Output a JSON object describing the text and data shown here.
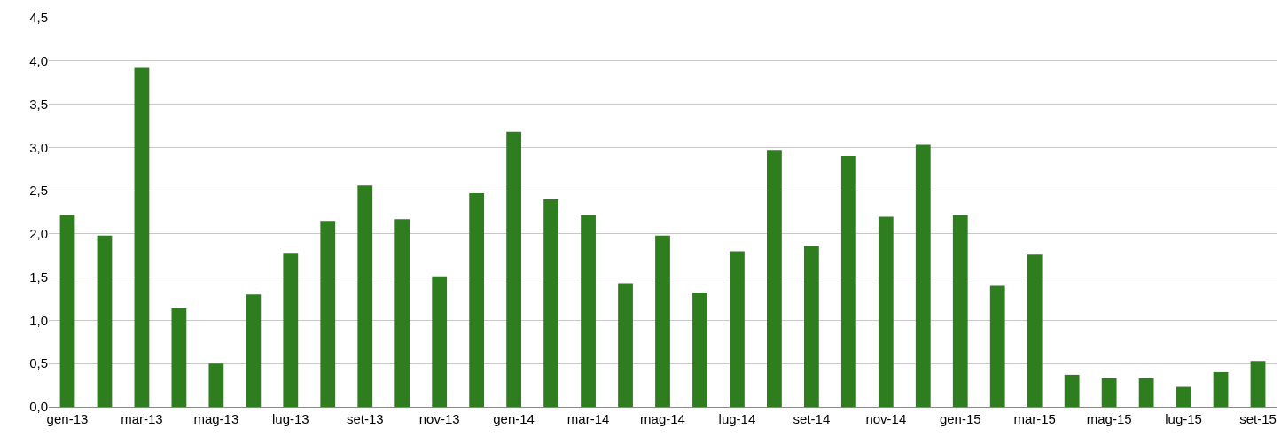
{
  "chart_data": {
    "type": "bar",
    "categories": [
      "gen-13",
      null,
      "mar-13",
      null,
      "mag-13",
      null,
      "lug-13",
      null,
      "set-13",
      null,
      "nov-13",
      null,
      "gen-14",
      null,
      "mar-14",
      null,
      "mag-14",
      null,
      "lug-14",
      null,
      "set-14",
      null,
      "nov-14",
      null,
      "gen-15",
      null,
      "mar-15",
      null,
      "mag-15",
      null,
      "lug-15",
      null,
      "set-15"
    ],
    "values": [
      2.22,
      1.98,
      3.92,
      1.14,
      0.5,
      1.3,
      1.78,
      2.15,
      2.56,
      2.17,
      1.51,
      2.47,
      3.18,
      2.4,
      2.22,
      1.43,
      1.98,
      1.32,
      1.8,
      2.97,
      1.86,
      2.9,
      2.2,
      3.03,
      2.22,
      1.4,
      1.76,
      0.37,
      0.33,
      0.33,
      0.23,
      0.4,
      0.53
    ],
    "color": "#2e7d1e",
    "ylim": [
      0,
      4.5
    ],
    "yticks": [
      {
        "value": 0,
        "label": "0,0"
      },
      {
        "value": 0.5,
        "label": "0,5"
      },
      {
        "value": 1,
        "label": "1,0"
      },
      {
        "value": 1.5,
        "label": "1,5"
      },
      {
        "value": 2,
        "label": "2,0"
      },
      {
        "value": 2.5,
        "label": "2,5"
      },
      {
        "value": 3,
        "label": "3,0"
      },
      {
        "value": 3.5,
        "label": "3,5"
      },
      {
        "value": 4,
        "label": "4,0"
      },
      {
        "value": 4.5,
        "label": "4,5"
      }
    ],
    "grid": "y"
  }
}
